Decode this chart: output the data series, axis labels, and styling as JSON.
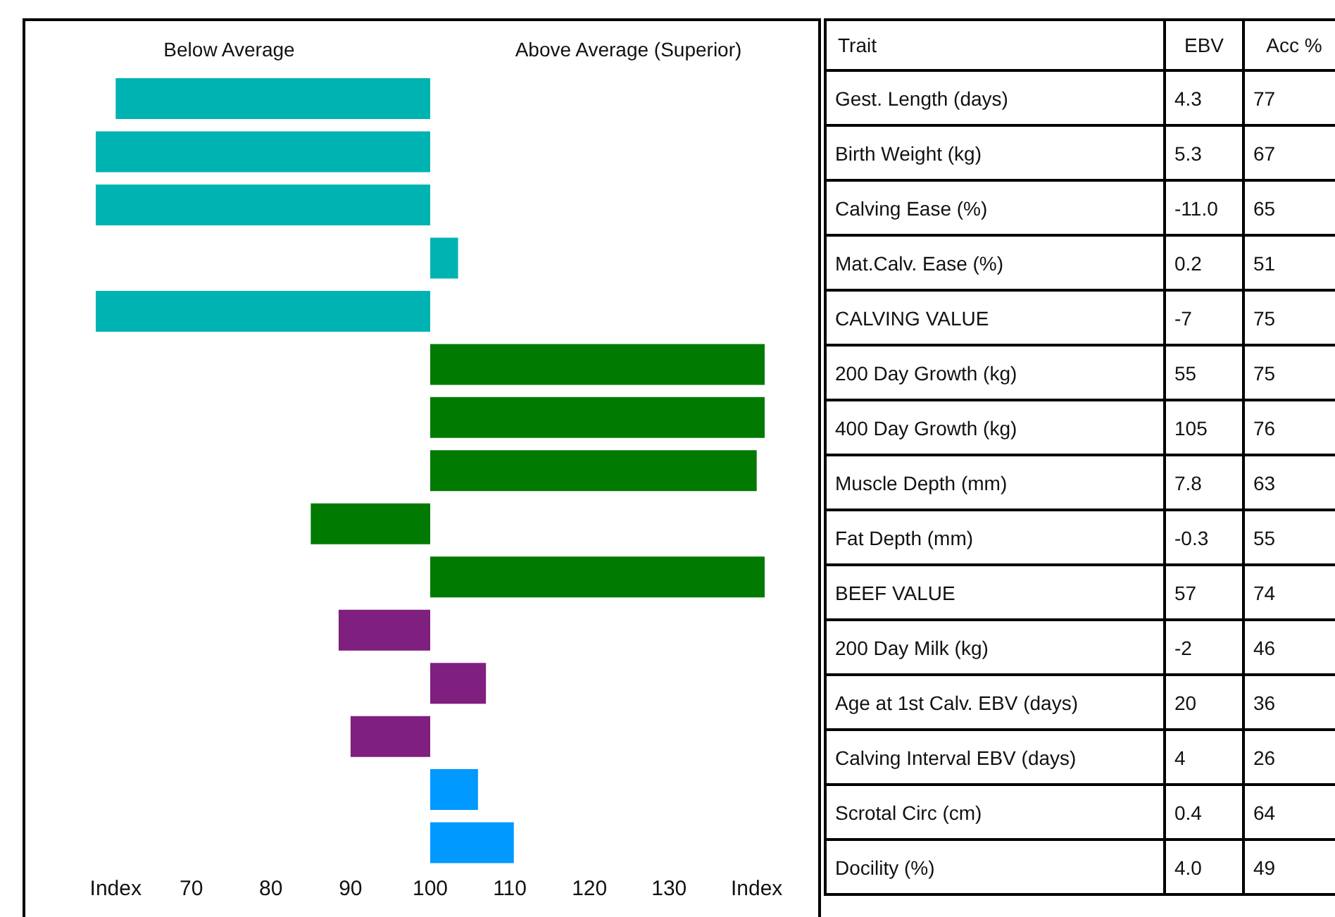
{
  "chart_data": [
    {
      "type": "bar",
      "orientation": "horizontal",
      "categories": [
        null,
        null,
        null,
        null,
        null,
        null,
        null,
        null,
        null,
        null,
        null,
        null,
        null,
        null,
        null
      ],
      "base": [
        100,
        100,
        100,
        100,
        100,
        100,
        100,
        100,
        100,
        100,
        100,
        100,
        100,
        100,
        100
      ],
      "values": [
        -39.5,
        -42,
        -42,
        3.5,
        -42,
        42,
        42,
        41,
        -15,
        42,
        -11.5,
        7,
        -10,
        6,
        10.5
      ],
      "colors": [
        "#00b3b3",
        "#00b3b3",
        "#00b3b3",
        "#00b3b3",
        "#00b3b3",
        "#007a00",
        "#007a00",
        "#007a00",
        "#007a00",
        "#007a00",
        "#7f1f7f",
        "#7f1f7f",
        "#7f1f7f",
        "#0099ff",
        "#0099ff"
      ],
      "xlim": [
        58,
        142
      ],
      "xticks": [
        {
          "value": 60.5,
          "label": "Index"
        },
        70,
        80,
        90,
        100,
        110,
        120,
        130,
        {
          "value": 141,
          "label": "Index"
        }
      ],
      "annotations": [
        "Below Average",
        "Above Average (Superior)"
      ]
    },
    {
      "type": "other",
      "ylabel": "Trait",
      "categories": [
        "EBV",
        "Acc %"
      ],
      "y_categories": [
        "Gest. Length (days)",
        "Birth Weight (kg)",
        "Calving Ease (%)",
        "Mat.Calv. Ease (%)",
        "CALVING VALUE",
        "200 Day Growth (kg)",
        "400 Day Growth (kg)",
        "Muscle Depth (mm)",
        "Fat Depth (mm)",
        "BEEF VALUE",
        "200 Day Milk (kg)",
        "Age at 1st Calv. EBV (days)",
        "Calving Interval EBV (days)",
        "Scrotal Circ (cm)",
        "Docility (%)"
      ],
      "cell_labels": [
        [
          "4.3",
          "77"
        ],
        [
          "5.3",
          "67"
        ],
        [
          "-11.0",
          "65"
        ],
        [
          "0.2",
          "51"
        ],
        [
          "-7",
          "75"
        ],
        [
          "55",
          "75"
        ],
        [
          "105",
          "76"
        ],
        [
          "7.8",
          "63"
        ],
        [
          "-0.3",
          "55"
        ],
        [
          "57",
          "74"
        ],
        [
          "-2",
          "46"
        ],
        [
          "20",
          "36"
        ],
        [
          "4",
          "26"
        ],
        [
          "0.4",
          "64"
        ],
        [
          "4.0",
          "49"
        ]
      ]
    }
  ]
}
